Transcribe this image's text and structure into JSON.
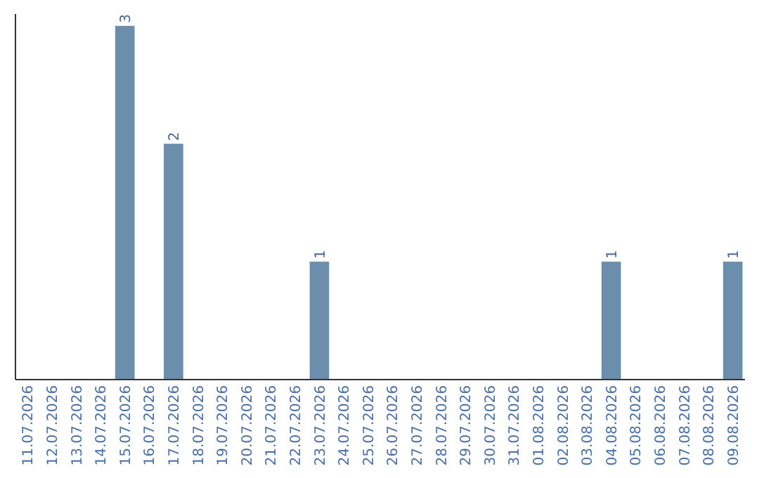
{
  "chart_data": {
    "type": "bar",
    "categories": [
      "11.07.2026",
      "12.07.2026",
      "13.07.2026",
      "14.07.2026",
      "15.07.2026",
      "16.07.2026",
      "17.07.2026",
      "18.07.2026",
      "19.07.2026",
      "20.07.2026",
      "21.07.2026",
      "22.07.2026",
      "23.07.2026",
      "24.07.2026",
      "25.07.2026",
      "26.07.2026",
      "27.07.2026",
      "28.07.2026",
      "29.07.2026",
      "30.07.2026",
      "31.07.2026",
      "01.08.2026",
      "02.08.2026",
      "03.08.2026",
      "04.08.2026",
      "05.08.2026",
      "06.08.2026",
      "07.08.2026",
      "08.08.2026",
      "09.08.2026"
    ],
    "values": [
      0,
      0,
      0,
      0,
      3,
      0,
      2,
      0,
      0,
      0,
      0,
      0,
      1,
      0,
      0,
      0,
      0,
      0,
      0,
      0,
      0,
      0,
      0,
      0,
      1,
      0,
      0,
      0,
      0,
      1
    ],
    "value_labels": [
      null,
      null,
      null,
      null,
      "3",
      null,
      "2",
      null,
      null,
      null,
      null,
      null,
      "1",
      null,
      null,
      null,
      null,
      null,
      null,
      null,
      null,
      null,
      null,
      null,
      "1",
      null,
      null,
      null,
      null,
      "1"
    ],
    "color": "#6c8ead",
    "ylim": [
      0,
      3.1
    ],
    "tick_labels": "x"
  }
}
